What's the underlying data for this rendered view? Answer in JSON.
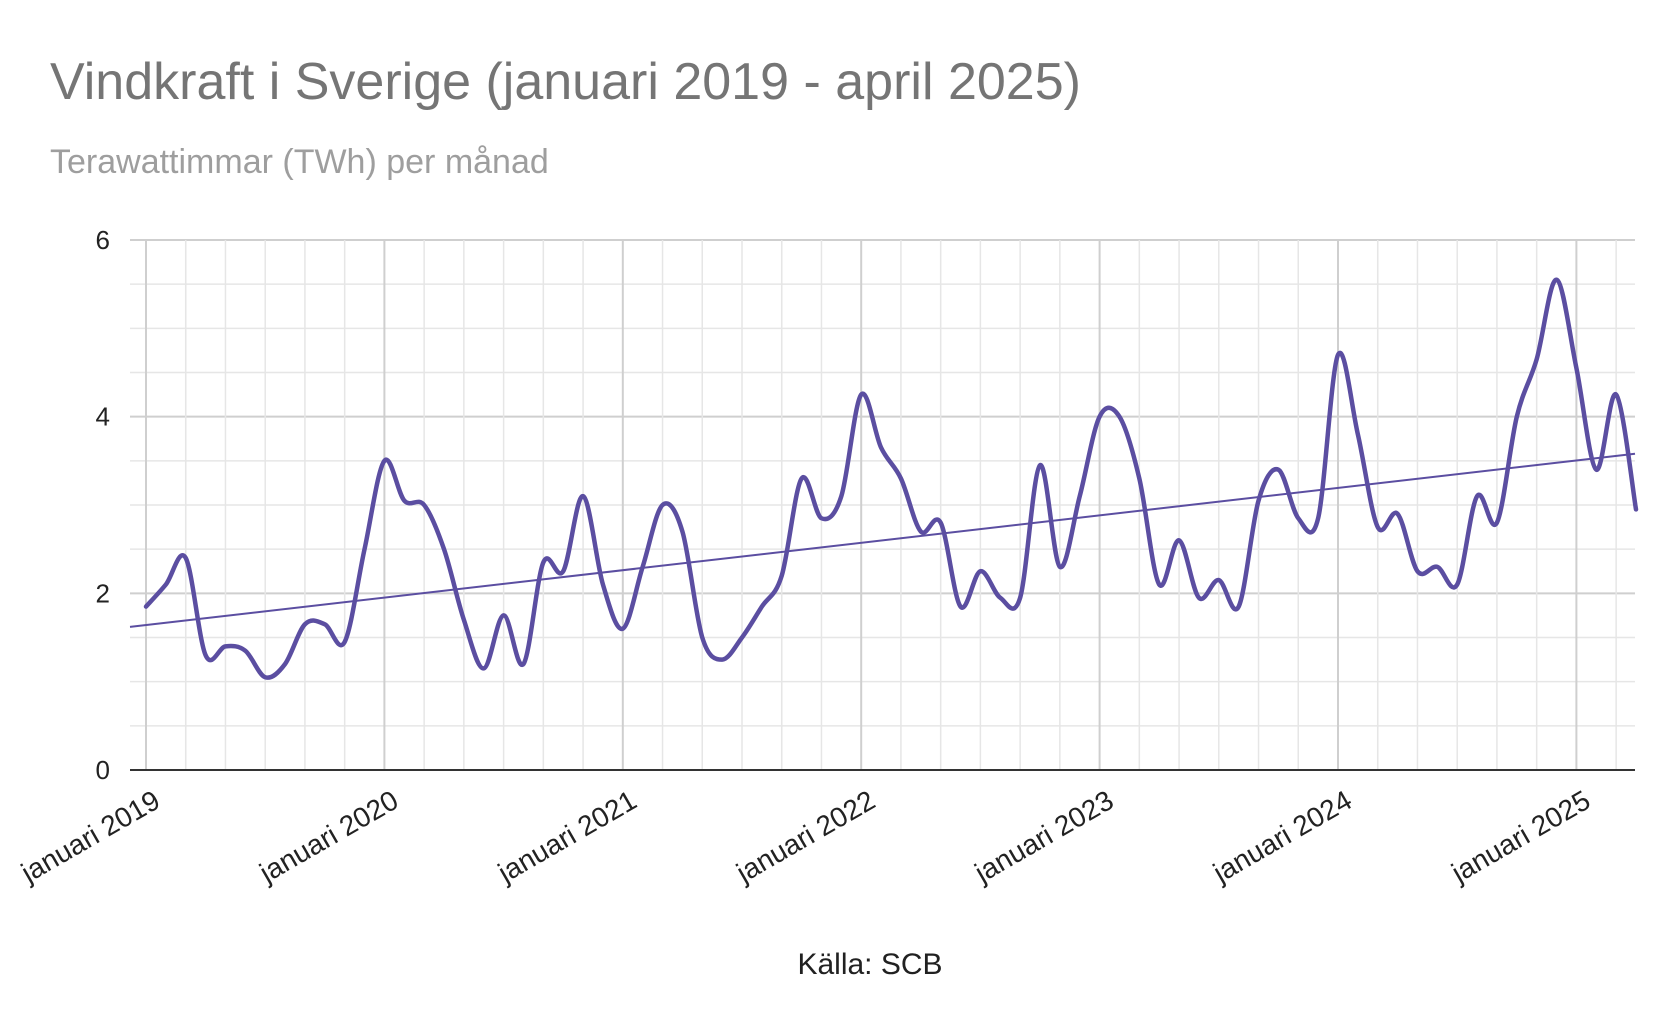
{
  "chart_data": {
    "type": "line",
    "title": "Vindkraft i Sverige (januari 2019 - april 2025)",
    "subtitle": "Terawattimmar (TWh) per månad",
    "source": "Källa: SCB",
    "xlabel": "",
    "ylabel": "",
    "ylim": [
      0,
      6
    ],
    "yticks": [
      0,
      2,
      4,
      6
    ],
    "xtick_labels": [
      "januari 2019",
      "januari 2020",
      "januari 2021",
      "januari 2022",
      "januari 2023",
      "januari 2024",
      "januari 2025"
    ],
    "grid": true,
    "colors": {
      "series": "#5b4ea1",
      "trend": "#5b4ea1",
      "grid_major": "#cfcfcf",
      "grid_minor": "#e6e6e6",
      "axis": "#333333"
    },
    "x": [
      "2019-01",
      "2019-02",
      "2019-03",
      "2019-04",
      "2019-05",
      "2019-06",
      "2019-07",
      "2019-08",
      "2019-09",
      "2019-10",
      "2019-11",
      "2019-12",
      "2020-01",
      "2020-02",
      "2020-03",
      "2020-04",
      "2020-05",
      "2020-06",
      "2020-07",
      "2020-08",
      "2020-09",
      "2020-10",
      "2020-11",
      "2020-12",
      "2021-01",
      "2021-02",
      "2021-03",
      "2021-04",
      "2021-05",
      "2021-06",
      "2021-07",
      "2021-08",
      "2021-09",
      "2021-10",
      "2021-11",
      "2021-12",
      "2022-01",
      "2022-02",
      "2022-03",
      "2022-04",
      "2022-05",
      "2022-06",
      "2022-07",
      "2022-08",
      "2022-09",
      "2022-10",
      "2022-11",
      "2022-12",
      "2023-01",
      "2023-02",
      "2023-03",
      "2023-04",
      "2023-05",
      "2023-06",
      "2023-07",
      "2023-08",
      "2023-09",
      "2023-10",
      "2023-11",
      "2023-12",
      "2024-01",
      "2024-02",
      "2024-03",
      "2024-04",
      "2024-05",
      "2024-06",
      "2024-07",
      "2024-08",
      "2024-09",
      "2024-10",
      "2024-11",
      "2024-12",
      "2025-01",
      "2025-02",
      "2025-03",
      "2025-04"
    ],
    "series": [
      {
        "values": [
          1.85,
          2.1,
          2.4,
          1.3,
          1.4,
          1.35,
          1.05,
          1.2,
          1.65,
          1.65,
          1.45,
          2.5,
          3.5,
          3.05,
          3.0,
          2.5,
          1.7,
          1.15,
          1.75,
          1.2,
          2.35,
          2.25,
          3.1,
          2.1,
          1.6,
          2.3,
          3.0,
          2.7,
          1.5,
          1.25,
          1.5,
          1.85,
          2.2,
          3.3,
          2.85,
          3.1,
          4.25,
          3.65,
          3.3,
          2.7,
          2.8,
          1.85,
          2.25,
          1.95,
          1.95,
          3.45,
          2.3,
          3.1,
          4.0,
          4.0,
          3.3,
          2.1,
          2.6,
          1.95,
          2.15,
          1.85,
          3.05,
          3.4,
          2.85,
          2.85,
          4.7,
          3.8,
          2.75,
          2.9,
          2.25,
          2.3,
          2.1,
          3.1,
          2.8,
          4.0,
          4.65,
          5.55,
          4.55,
          3.4,
          4.25,
          2.95
        ]
      }
    ],
    "trendline": {
      "start": 1.62,
      "end": 3.58
    }
  }
}
